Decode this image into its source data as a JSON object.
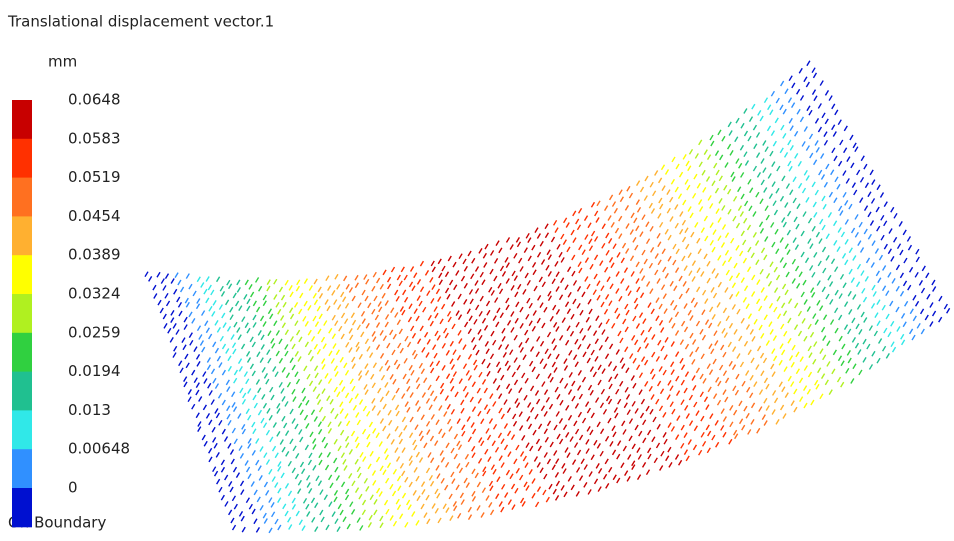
{
  "title": "Translational displacement vector.1",
  "unit": "mm",
  "legend": {
    "labels": [
      "0.0648",
      "0.0583",
      "0.0519",
      "0.0454",
      "0.0389",
      "0.0324",
      "0.0259",
      "0.0194",
      "0.013",
      "0.00648",
      "0"
    ],
    "colors": [
      "#c80000",
      "#ff3000",
      "#ff7020",
      "#ffb030",
      "#ffff00",
      "#b0f020",
      "#30d040",
      "#20c090",
      "#30e8e8",
      "#3090ff",
      "#0010d0"
    ]
  },
  "footer": "On Boundary"
}
